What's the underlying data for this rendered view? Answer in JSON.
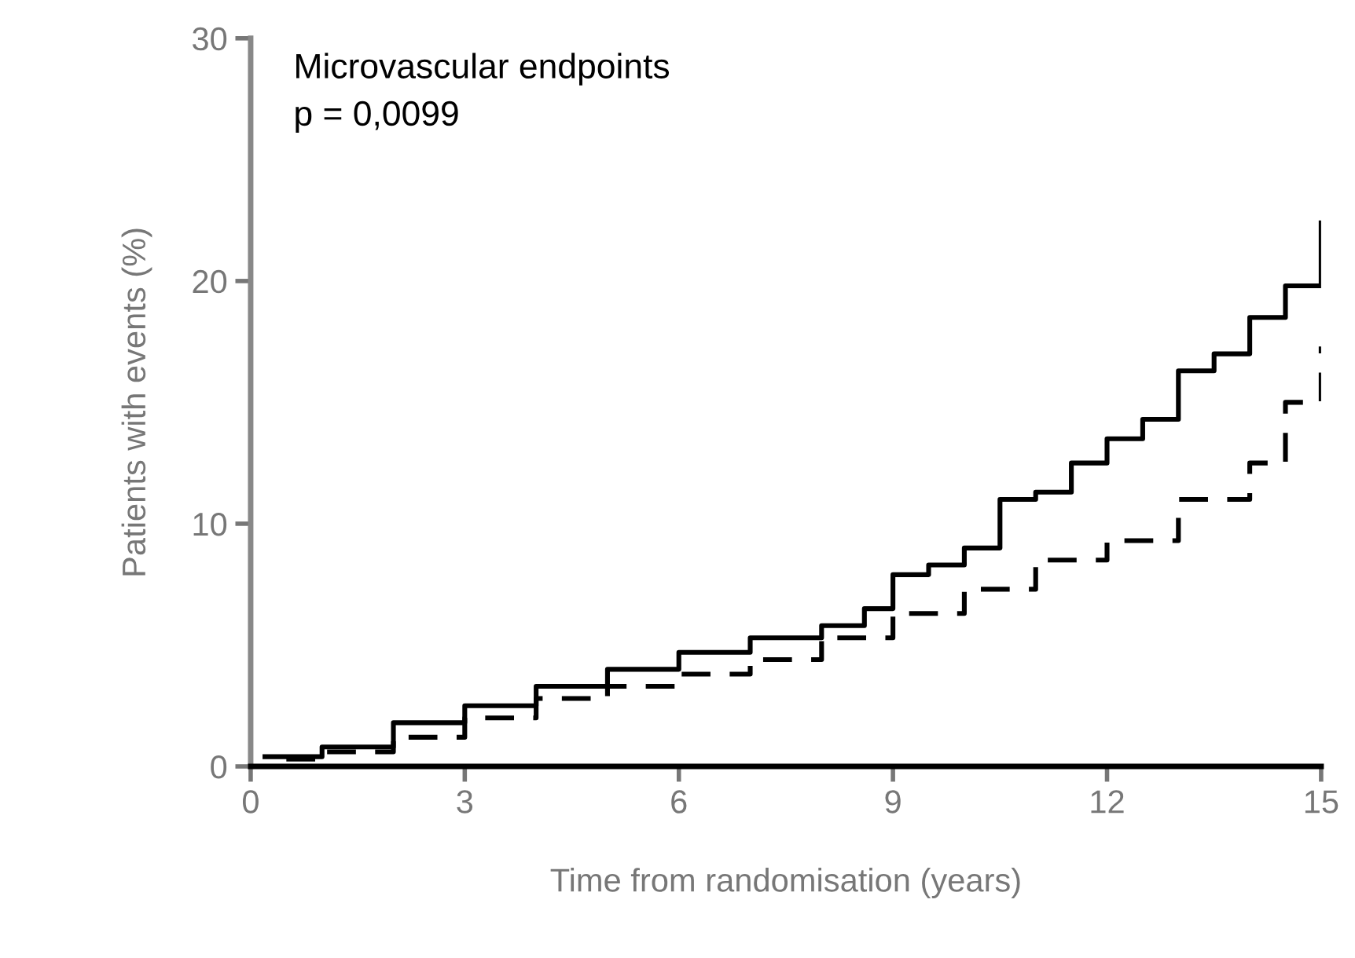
{
  "chart_data": {
    "type": "step",
    "xlabel": "Time from randomisation (years)",
    "ylabel": "Patients with events (%)",
    "annotations": [
      "Microvascular endpoints",
      "p = 0,0099"
    ],
    "xlim": [
      0,
      15
    ],
    "ylim": [
      0,
      30
    ],
    "xticks": [
      0,
      3,
      6,
      9,
      12,
      15
    ],
    "yticks": [
      0,
      10,
      20,
      30
    ],
    "grid": false,
    "legend": false,
    "series": [
      {
        "color": "#000000",
        "line_style": "solid",
        "x": [
          0.2,
          1,
          2,
          3,
          4,
          5,
          6,
          7,
          8,
          8.6,
          9,
          9.5,
          10,
          10.5,
          11,
          11.5,
          12,
          12.5,
          13,
          13.5,
          14,
          14.5,
          15,
          15
        ],
        "values": [
          0.4,
          0.8,
          1.8,
          2.5,
          3.3,
          4.0,
          4.7,
          5.3,
          5.8,
          6.5,
          7.9,
          8.3,
          9.0,
          11,
          11.3,
          12.5,
          13.5,
          14.3,
          16.3,
          17,
          18.5,
          19.8,
          19.8,
          22.4
        ]
      },
      {
        "color": "#000000",
        "line_style": "dashed",
        "x": [
          0.5,
          1,
          2,
          3,
          4,
          5,
          6,
          7,
          8,
          9,
          10,
          11,
          12,
          13,
          14,
          14.5,
          15
        ],
        "values": [
          0.3,
          0.6,
          1.2,
          2.0,
          2.8,
          3.3,
          3.8,
          4.4,
          5.3,
          6.3,
          7.3,
          8.5,
          9.3,
          11.0,
          12.5,
          15,
          17.3
        ]
      }
    ]
  }
}
